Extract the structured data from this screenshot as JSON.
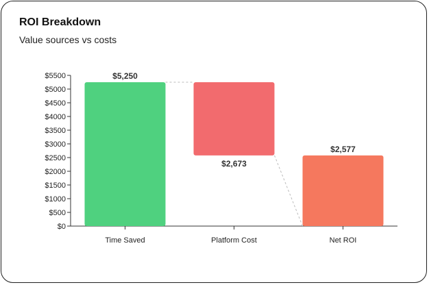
{
  "chart_data": {
    "type": "waterfall",
    "title": "ROI Breakdown",
    "subtitle": "Value sources vs costs",
    "ylim": [
      0,
      5500
    ],
    "yticks": [
      0,
      500,
      1000,
      1500,
      2000,
      2500,
      3000,
      3500,
      4000,
      4500,
      5000,
      5500
    ],
    "ytick_labels": [
      "$0",
      "$500",
      "$1000",
      "$1500",
      "$2000",
      "$2500",
      "$3000",
      "$3500",
      "$4000",
      "$4500",
      "$5000",
      "$5500"
    ],
    "categories": [
      "Time Saved",
      "Platform Cost",
      "Net ROI"
    ],
    "bars": [
      {
        "category": "Time Saved",
        "start": 0,
        "end": 5250,
        "label": "$5,250",
        "color": "#4fd17f",
        "label_position": "above"
      },
      {
        "category": "Platform Cost",
        "start": 2577,
        "end": 5250,
        "label": "$2,673",
        "color": "#f26b6e",
        "label_position": "below"
      },
      {
        "category": "Net ROI",
        "start": 0,
        "end": 2577,
        "label": "$2,577",
        "color": "#f5785e",
        "label_position": "above"
      }
    ],
    "connectors": true,
    "grid": false
  }
}
